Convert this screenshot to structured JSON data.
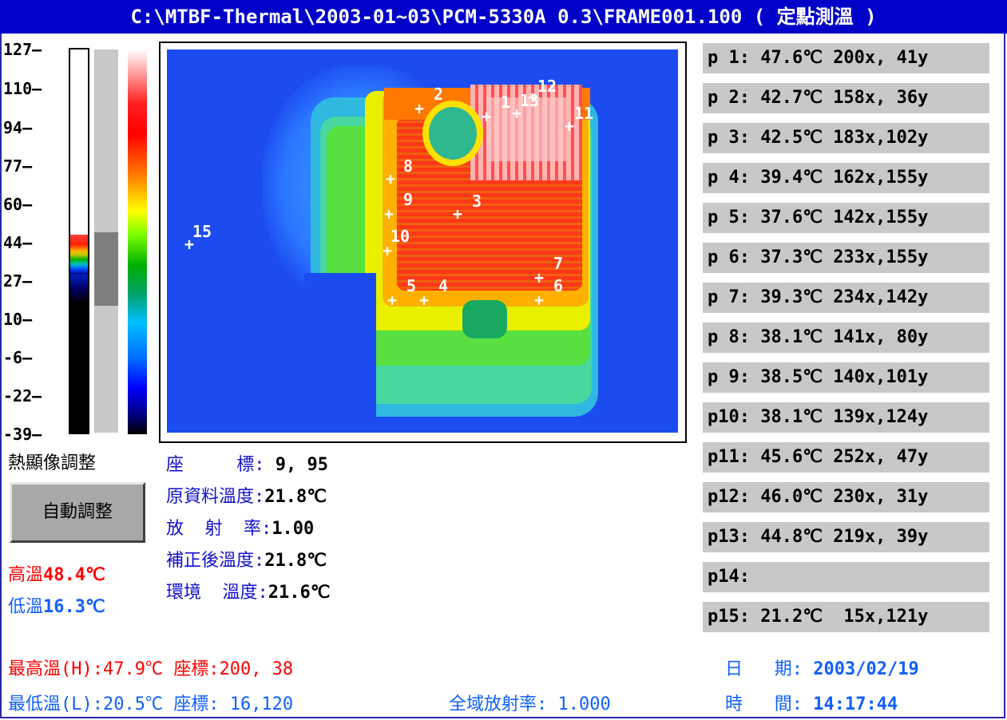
{
  "window": {
    "title": "C:\\MTBF-Thermal\\2003-01~03\\PCM-5330A 0.3\\FRAME001.100 ( 定點測溫 )"
  },
  "scale": {
    "labels": [
      "127",
      "110",
      "94",
      "77",
      "60",
      "44",
      "27",
      "10",
      "-6",
      "-22",
      "-39"
    ]
  },
  "markers": [
    "1",
    "2",
    "3",
    "4",
    "5",
    "6",
    "7",
    "8",
    "9",
    "10",
    "11",
    "12",
    "13",
    "15"
  ],
  "points": [
    {
      "id": "p 1",
      "temp": "47.6℃",
      "coord": "200x, 41y"
    },
    {
      "id": "p 2",
      "temp": "42.7℃",
      "coord": "158x, 36y"
    },
    {
      "id": "p 3",
      "temp": "42.5℃",
      "coord": "183x,102y"
    },
    {
      "id": "p 4",
      "temp": "39.4℃",
      "coord": "162x,155y"
    },
    {
      "id": "p 5",
      "temp": "37.6℃",
      "coord": "142x,155y"
    },
    {
      "id": "p 6",
      "temp": "37.3℃",
      "coord": "233x,155y"
    },
    {
      "id": "p 7",
      "temp": "39.3℃",
      "coord": "234x,142y"
    },
    {
      "id": "p 8",
      "temp": "38.1℃",
      "coord": "141x, 80y"
    },
    {
      "id": "p 9",
      "temp": "38.5℃",
      "coord": "140x,101y"
    },
    {
      "id": "p10",
      "temp": "38.1℃",
      "coord": "139x,124y"
    },
    {
      "id": "p11",
      "temp": "45.6℃",
      "coord": "252x, 47y"
    },
    {
      "id": "p12",
      "temp": "46.0℃",
      "coord": "230x, 31y"
    },
    {
      "id": "p13",
      "temp": "44.8℃",
      "coord": "219x, 39y"
    },
    {
      "id": "p14",
      "temp": "",
      "coord": ""
    },
    {
      "id": "p15",
      "temp": "21.2℃",
      "coord": " 15x,121y"
    }
  ],
  "controls": {
    "adjust_title": "熱顯像調整",
    "auto_button": "自動調整",
    "high_label": "高溫",
    "high_value": "48.4℃",
    "low_label": "低溫",
    "low_value": "16.3℃"
  },
  "info": {
    "coord_label": "座     標:",
    "coord_value": " 9, 95",
    "raw_temp_label": "原資料溫度:",
    "raw_temp_value": "21.8℃",
    "emissivity_label": "放  射  率:",
    "emissivity_value": "1.00",
    "corrected_label": "補正後溫度:",
    "corrected_value": "21.8℃",
    "ambient_label": "環境  溫度:",
    "ambient_value": "21.6℃"
  },
  "footer": {
    "max_text": "最高溫(H):47.9℃ 座標:200, 38",
    "min_text": "最低溫(L):20.5℃ 座標: 16,120",
    "global_emissivity": "全域放射率: 1.000",
    "date_label": "日   期: ",
    "date_value": "2003/02/19",
    "time_label": "時   間: ",
    "time_value": "14:17:44"
  },
  "colors": {
    "title_bar": "#0000c8",
    "panel_gray": "#c8c8c8",
    "high_red": "#ff0000",
    "low_blue": "#1060ff"
  }
}
